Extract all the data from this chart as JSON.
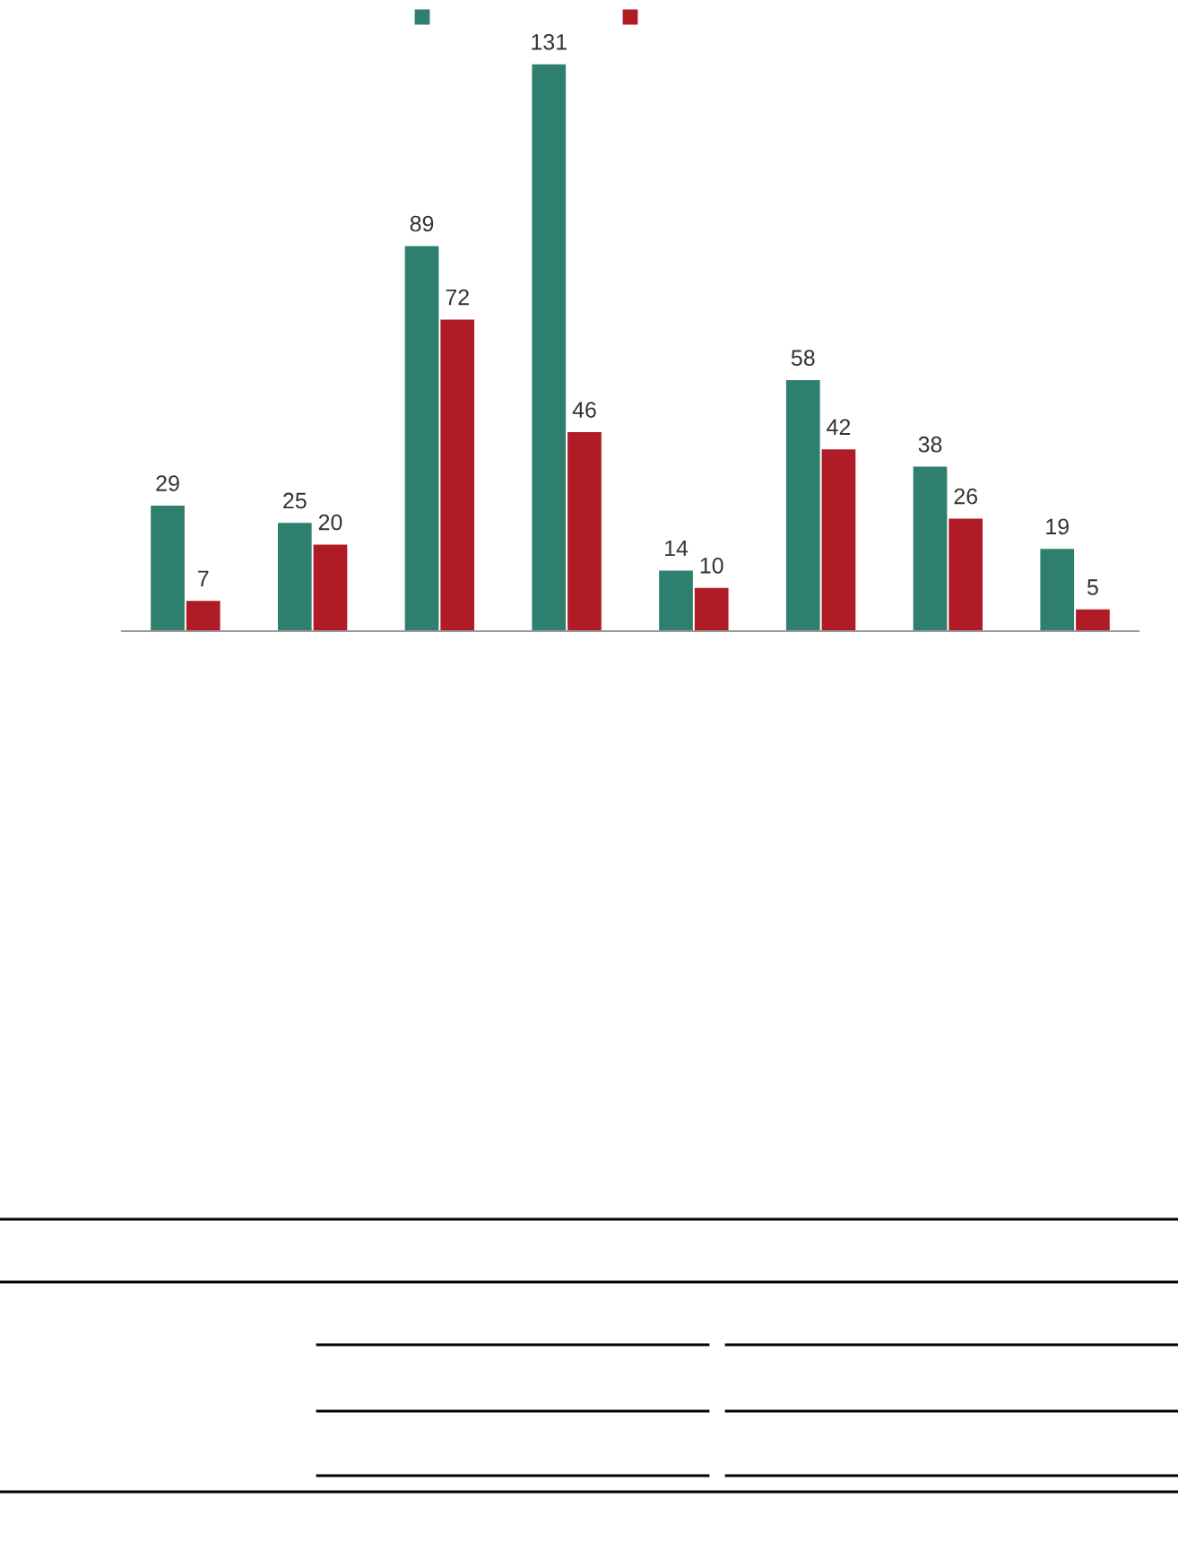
{
  "chart_data": {
    "type": "bar",
    "categories": [
      null,
      null,
      null,
      null,
      null,
      null,
      null,
      null
    ],
    "series": [
      {
        "color": "#2e7f6e",
        "values": [
          29,
          25,
          89,
          131,
          14,
          58,
          38,
          19
        ]
      },
      {
        "color": "#b01c25",
        "values": [
          7,
          20,
          72,
          46,
          10,
          42,
          26,
          5
        ]
      }
    ],
    "data_labels": true,
    "grid": false
  }
}
